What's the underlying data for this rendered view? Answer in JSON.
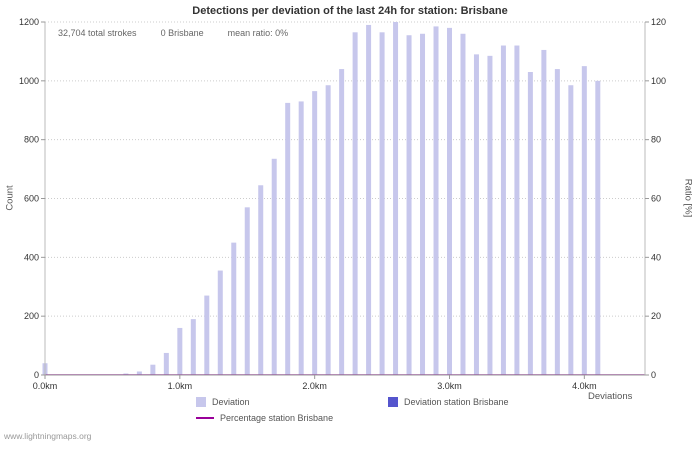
{
  "stats": {
    "total_strokes": "32,704 total strokes",
    "station_strokes": "0 Brisbane",
    "mean_ratio": "mean ratio: 0%"
  },
  "legend": {
    "items": [
      {
        "label": "Deviation",
        "color": "#c7c7ec",
        "type": "square"
      },
      {
        "label": "Deviation station Brisbane",
        "color": "#5555cd",
        "type": "square"
      },
      {
        "label": "Percentage station Brisbane",
        "color": "#990099",
        "type": "line"
      }
    ]
  },
  "watermark": "www.lightningmaps.org",
  "chart_data": {
    "type": "bar",
    "title": "Detections per deviation of the last 24h for station: Brisbane",
    "xlabel": "Deviations",
    "ylabel_left": "Count",
    "ylabel_right": "Ratio [%]",
    "ylim_left": [
      0,
      1200
    ],
    "ylim_right": [
      0,
      120
    ],
    "y_ticks_left": [
      0,
      200,
      400,
      600,
      800,
      1000,
      1200
    ],
    "y_ticks_right": [
      0,
      20,
      40,
      60,
      80,
      100,
      120
    ],
    "x_range_km": [
      0,
      4.45
    ],
    "x_ticks_km": [
      0,
      1,
      2,
      3,
      4
    ],
    "x_tick_labels": [
      "0.0km",
      "1.0km",
      "2.0km",
      "3.0km",
      "4.0km"
    ],
    "bin_width_km": 0.1,
    "grid": true,
    "legend_position": "bottom",
    "series": [
      {
        "name": "Deviation",
        "color": "#c7c7ec",
        "points": [
          {
            "x": 0.0,
            "y": 40
          },
          {
            "x": 0.6,
            "y": 5
          },
          {
            "x": 0.7,
            "y": 12
          },
          {
            "x": 0.8,
            "y": 35
          },
          {
            "x": 0.9,
            "y": 75
          },
          {
            "x": 1.0,
            "y": 160
          },
          {
            "x": 1.1,
            "y": 190
          },
          {
            "x": 1.2,
            "y": 270
          },
          {
            "x": 1.3,
            "y": 355
          },
          {
            "x": 1.4,
            "y": 450
          },
          {
            "x": 1.5,
            "y": 570
          },
          {
            "x": 1.6,
            "y": 645
          },
          {
            "x": 1.7,
            "y": 735
          },
          {
            "x": 1.8,
            "y": 925
          },
          {
            "x": 1.9,
            "y": 930
          },
          {
            "x": 2.0,
            "y": 965
          },
          {
            "x": 2.1,
            "y": 985
          },
          {
            "x": 2.2,
            "y": 1040
          },
          {
            "x": 2.3,
            "y": 1165
          },
          {
            "x": 2.4,
            "y": 1190
          },
          {
            "x": 2.5,
            "y": 1165
          },
          {
            "x": 2.6,
            "y": 1200
          },
          {
            "x": 2.7,
            "y": 1155
          },
          {
            "x": 2.8,
            "y": 1160
          },
          {
            "x": 2.9,
            "y": 1185
          },
          {
            "x": 3.0,
            "y": 1180
          },
          {
            "x": 3.1,
            "y": 1160
          },
          {
            "x": 3.2,
            "y": 1090
          },
          {
            "x": 3.3,
            "y": 1085
          },
          {
            "x": 3.4,
            "y": 1120
          },
          {
            "x": 3.5,
            "y": 1120
          },
          {
            "x": 3.6,
            "y": 1030
          },
          {
            "x": 3.7,
            "y": 1105
          },
          {
            "x": 3.8,
            "y": 1040
          },
          {
            "x": 3.9,
            "y": 985
          },
          {
            "x": 4.0,
            "y": 1050
          },
          {
            "x": 4.1,
            "y": 1000
          }
        ]
      },
      {
        "name": "Deviation station Brisbane",
        "color": "#5555cd",
        "points": []
      },
      {
        "name": "Percentage station Brisbane",
        "color": "#990099",
        "type": "line",
        "mean_percent": 0,
        "points": []
      }
    ]
  }
}
